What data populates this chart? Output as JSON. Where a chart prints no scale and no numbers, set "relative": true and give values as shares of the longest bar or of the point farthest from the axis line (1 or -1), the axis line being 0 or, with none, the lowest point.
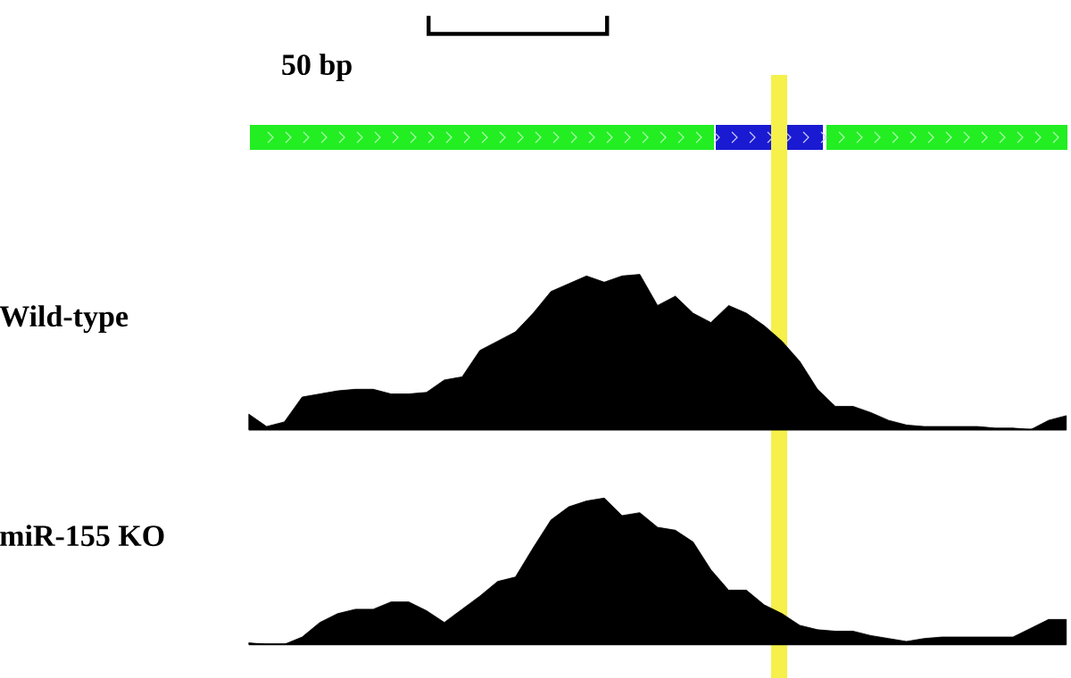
{
  "chart_data": [
    {
      "type": "area",
      "relative": true,
      "title": "Wild-type",
      "annotations": [
        "50 bp"
      ],
      "tick_labels": false,
      "color": "#000000",
      "categories": [
        null,
        null,
        null,
        null,
        null,
        null,
        null,
        null,
        null,
        null,
        null,
        null,
        null,
        null,
        null,
        null,
        null,
        null,
        null,
        null,
        null,
        null,
        null,
        null,
        null,
        null,
        null,
        null,
        null,
        null,
        null,
        null,
        null,
        null,
        null,
        null,
        null,
        null,
        null,
        null,
        null,
        null,
        null,
        null,
        null,
        null,
        null
      ],
      "values": [
        0.1,
        0.02,
        0.05,
        0.21,
        0.23,
        0.25,
        0.26,
        0.26,
        0.23,
        0.23,
        0.24,
        0.32,
        0.34,
        0.51,
        0.57,
        0.63,
        0.75,
        0.89,
        0.94,
        0.99,
        0.95,
        0.99,
        1,
        0.8,
        0.86,
        0.75,
        0.69,
        0.8,
        0.75,
        0.67,
        0.57,
        0.44,
        0.26,
        0.15,
        0.15,
        0.11,
        0.06,
        0.03,
        0.02,
        0.02,
        0.02,
        0.02,
        0.01,
        0.01,
        0,
        0.06,
        0.09
      ]
    },
    {
      "type": "area",
      "relative": true,
      "title": "miR-155 KO",
      "tick_labels": false,
      "color": "#000000",
      "categories": [
        null,
        null,
        null,
        null,
        null,
        null,
        null,
        null,
        null,
        null,
        null,
        null,
        null,
        null,
        null,
        null,
        null,
        null,
        null,
        null,
        null,
        null,
        null,
        null,
        null,
        null,
        null,
        null,
        null,
        null,
        null,
        null,
        null,
        null,
        null,
        null,
        null,
        null,
        null,
        null,
        null,
        null,
        null,
        null,
        null,
        null,
        null
      ],
      "values": [
        0.01,
        0,
        0,
        0.05,
        0.15,
        0.21,
        0.24,
        0.24,
        0.29,
        0.29,
        0.23,
        0.15,
        0.24,
        0.33,
        0.43,
        0.46,
        0.66,
        0.85,
        0.94,
        0.98,
        1,
        0.88,
        0.9,
        0.8,
        0.78,
        0.7,
        0.51,
        0.37,
        0.37,
        0.27,
        0.21,
        0.13,
        0.1,
        0.09,
        0.09,
        0.06,
        0.04,
        0.02,
        0.04,
        0.05,
        0.05,
        0.05,
        0.05,
        0.05,
        0.11,
        0.17,
        0.17
      ]
    }
  ]
}
